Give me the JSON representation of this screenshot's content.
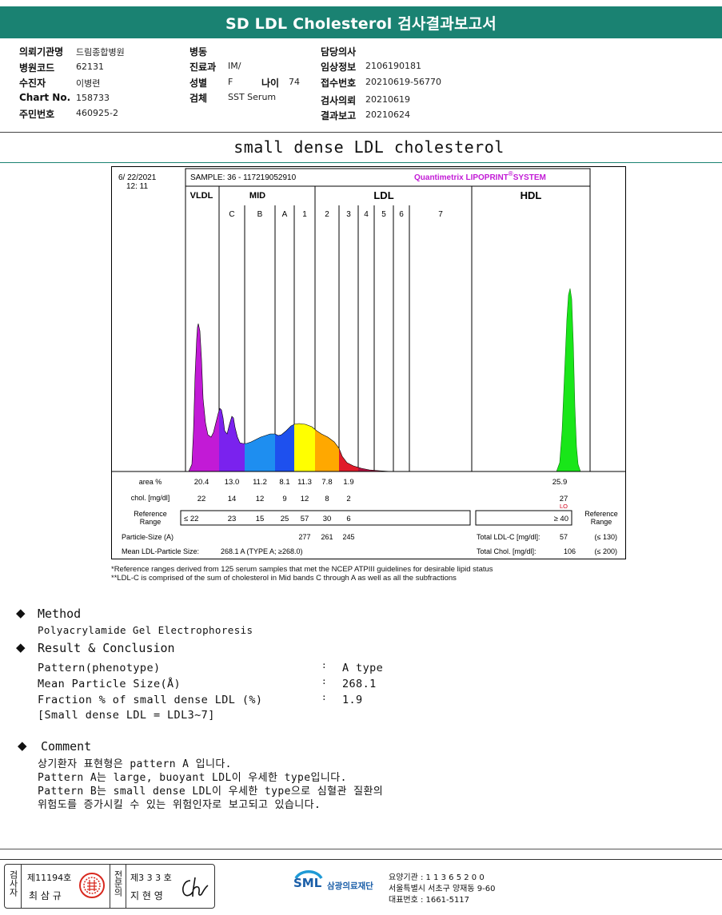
{
  "title": "SD LDL Cholesterol 검사결과보고서",
  "header": {
    "col1": [
      {
        "label": "의뢰기관명",
        "value": "드림종합병원"
      },
      {
        "label": "병원코드",
        "value": "62131"
      },
      {
        "label": "수진자",
        "value": "이병련"
      },
      {
        "label": "Chart No.",
        "value": "158733"
      },
      {
        "label": "주민번호",
        "value": "460925-2"
      }
    ],
    "col2": [
      {
        "label": "병동",
        "value": ""
      },
      {
        "label": "진료과",
        "value": "IM/"
      },
      {
        "label": "성별",
        "value": "F"
      },
      {
        "label": "검체",
        "value": "SST Serum"
      }
    ],
    "age": {
      "label": "나이",
      "value": "74"
    },
    "col3": [
      {
        "label": "담당의사",
        "value": ""
      },
      {
        "label": "임상정보",
        "value": "2106190181"
      },
      {
        "label": "접수번호",
        "value": "20210619-56770"
      },
      {
        "label": "검사의뢰",
        "value": "20210619"
      },
      {
        "label": "결과보고",
        "value": "20210624"
      }
    ]
  },
  "section_title": "small dense LDL cholesterol",
  "chart": {
    "date": "6/ 22/2021",
    "time": "12: 11",
    "sample": "SAMPLE:   36 - 117219052910",
    "brand": "Quantimetrix LIPOPRINT",
    "brand_mark": "®",
    "brand_system": "SYSTEM",
    "groups": {
      "vldl": "VLDL",
      "mid": "MID",
      "ldl": "LDL",
      "hdl": "HDL"
    },
    "bands": [
      "C",
      "B",
      "A",
      "1",
      "2",
      "3",
      "4",
      "5",
      "6",
      "7"
    ],
    "row_labels": {
      "area": "area %",
      "chol": "chol. [mg/dl]",
      "ref": "Reference\nRange",
      "ref_right": "Reference\nRange",
      "psize": "Particle-Size (A)",
      "mean": "Mean LDL-Particle Size:"
    },
    "area": [
      "20.4",
      "13.0",
      "11.2",
      "8.1",
      "11.3",
      "7.8",
      "1.9"
    ],
    "hdl_area": "25.9",
    "chol": [
      "22",
      "14",
      "12",
      "9",
      "12",
      "8",
      "2"
    ],
    "hdl_chol": "27",
    "hdl_flag": "LO",
    "ref_vldl": "≤ 22",
    "ref": [
      "23",
      "15",
      "25",
      "57",
      "30",
      "6"
    ],
    "ref_hdl": "≥ 40",
    "psize": [
      "277",
      "261",
      "245"
    ],
    "mean_value": "268.1 A   (TYPE A; ≥268.0)",
    "total_ldl_label": "Total LDL-C [mg/dl]:",
    "total_ldl_value": "57",
    "total_ldl_ref": "(≤ 130)",
    "total_chol_label": "Total Chol. [mg/dl]:",
    "total_chol_value": "106",
    "total_chol_ref": "(≤ 200)",
    "colors": {
      "vldl": "#c21ad6",
      "midc": "#7a22ee",
      "midb": "#1e8ef0",
      "mida": "#1e50ee",
      "ldl1": "#ffff00",
      "ldl2": "#ffa800",
      "ldl3": "#e01b2a",
      "ldl4": "#b01040",
      "hdl": "#19e619"
    }
  },
  "chart_data": {
    "type": "area",
    "title": "",
    "categories": [
      "VLDL",
      "MID C",
      "MID B",
      "MID A",
      "LDL 1",
      "LDL 2",
      "LDL 3",
      "LDL 4",
      "LDL 5",
      "LDL 6",
      "LDL 7",
      "HDL"
    ],
    "series": [
      {
        "name": "area %",
        "values": [
          20.4,
          13.0,
          11.2,
          8.1,
          11.3,
          7.8,
          1.9,
          null,
          null,
          null,
          null,
          25.9
        ]
      },
      {
        "name": "chol. [mg/dl]",
        "values": [
          22,
          14,
          12,
          9,
          12,
          8,
          2,
          null,
          null,
          null,
          null,
          27
        ]
      }
    ],
    "particle_size_A": {
      "LDL 1": 277,
      "LDL 2": 261,
      "LDL 3": 245
    },
    "mean_ldl_particle_size": 268.1,
    "total_ldl_c": 57,
    "total_chol": 106
  },
  "notes": [
    "*Reference ranges derived from 125 serum samples that met the NCEP ATPIII guidelines for desirable lipid status",
    "**LDL-C is comprised of the sum of cholesterol in Mid bands C through A as well as all the subfractions"
  ],
  "method": {
    "heading": "Method",
    "text": "Polyacrylamide Gel Electrophoresis"
  },
  "result": {
    "heading": "Result & Conclusion",
    "rows": [
      {
        "label": "Pattern(phenotype)",
        "sep": ":",
        "value": "A type"
      },
      {
        "label": "Mean Particle Size(Å)",
        "sep": ":",
        "value": "268.1"
      },
      {
        "label": "Fraction % of small dense LDL (%)",
        "sep": ":",
        "value": "1.9"
      }
    ],
    "note": "[Small dense LDL = LDL3~7]"
  },
  "comment": {
    "heading": "Comment",
    "lines": [
      "상기환자 표현형은 pattern A 입니다.",
      "Pattern A는 large, buoyant LDL이 우세한 type입니다.",
      "Pattern B는 small dense LDL이 우세한 type으로 심혈관 질환의",
      "위험도를 증가시킬 수 있는 위험인자로 보고되고 있습니다."
    ]
  },
  "footer": {
    "sign1_vert": "검사자",
    "sign1_no": "제11194호",
    "sign1_name": "최 삼 규",
    "sign2_vert": "전문의",
    "sign2_no": "제3 3 3 호",
    "sign2_name": "지 현 영",
    "logo": "SML",
    "org": "삼광의료재단",
    "info1": "요양기관 : 1 1 3 6 5 2 0 0",
    "info2": "서울특별시 서초구 양재동 9-60",
    "info3": "대표번호 : 1661-5117"
  }
}
